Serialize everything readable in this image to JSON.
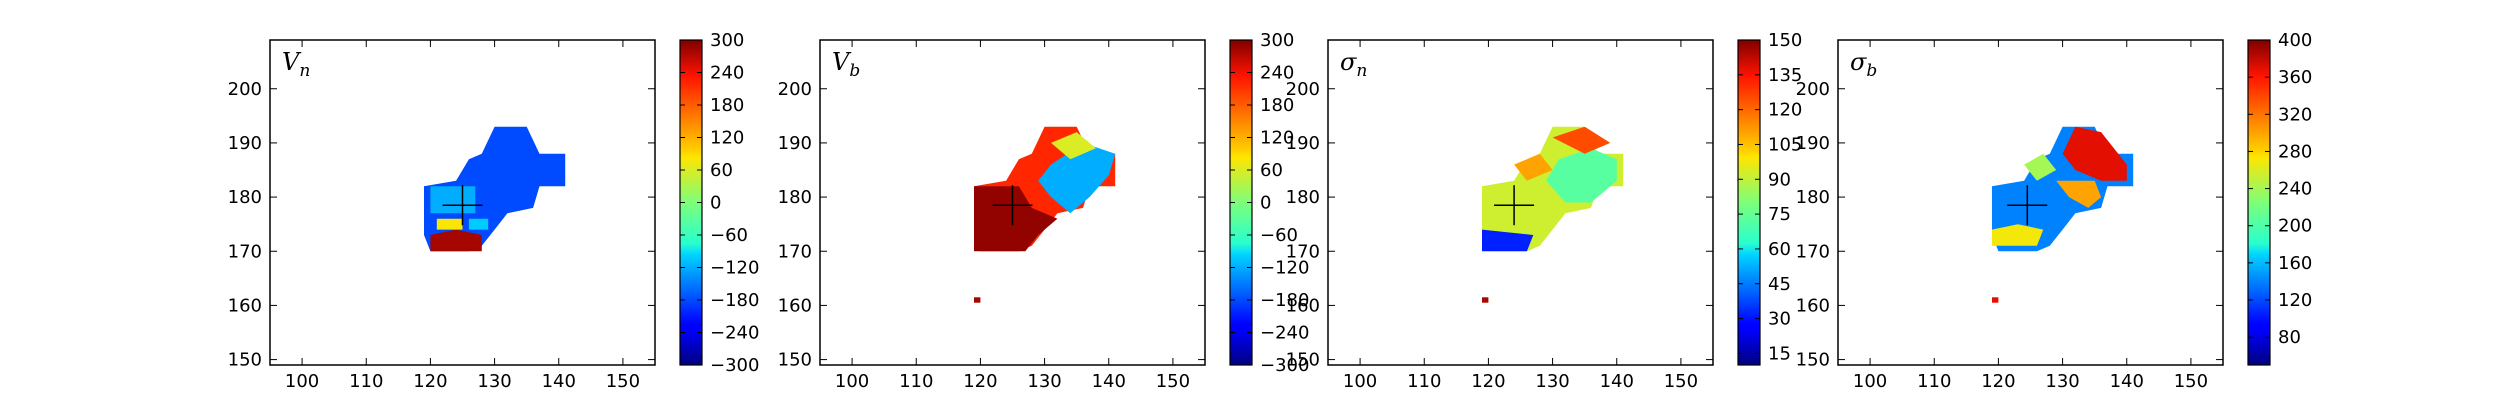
{
  "chart_data": [
    {
      "type": "heatmap",
      "title": "V_n",
      "title_base": "V",
      "title_sub": "n",
      "xlim": [
        95,
        155
      ],
      "ylim": [
        149,
        209
      ],
      "xticks": [
        100,
        110,
        120,
        130,
        140,
        150
      ],
      "yticks": [
        150,
        160,
        170,
        180,
        190,
        200
      ],
      "marker": {
        "x": 125,
        "y": 178.5
      },
      "colorbar": {
        "min": -300,
        "max": 300,
        "ticks": [
          -300,
          -240,
          -180,
          -120,
          -60,
          0,
          60,
          120,
          180,
          240,
          300
        ]
      },
      "regions": [
        {
          "poly": [
            [
              130,
              193
            ],
            [
              135,
              193
            ],
            [
              137,
              188
            ],
            [
              141,
              188
            ],
            [
              141,
              182
            ],
            [
              137,
              182
            ],
            [
              136,
              178
            ],
            [
              132,
              177
            ],
            [
              130,
              174
            ],
            [
              128,
              171
            ],
            [
              126,
              170
            ],
            [
              120,
              170
            ],
            [
              119,
              173
            ],
            [
              119,
              182
            ],
            [
              124,
              183
            ],
            [
              126,
              187
            ],
            [
              128,
              188
            ]
          ],
          "value": -180
        },
        {
          "poly": [
            [
              120,
              170
            ],
            [
              128,
              170
            ],
            [
              128,
              173
            ],
            [
              124,
              174
            ],
            [
              120,
              173
            ]
          ],
          "value": 280
        },
        {
          "poly": [
            [
              121,
              174
            ],
            [
              125,
              174
            ],
            [
              125,
              176
            ],
            [
              121,
              176
            ]
          ],
          "value": 80
        },
        {
          "poly": [
            [
              126,
              174
            ],
            [
              129,
              174
            ],
            [
              129,
              176
            ],
            [
              126,
              176
            ]
          ],
          "value": -100
        },
        {
          "poly": [
            [
              120,
              177
            ],
            [
              127,
              177
            ],
            [
              127,
              182
            ],
            [
              120,
              182
            ]
          ],
          "value": -120
        }
      ]
    },
    {
      "type": "heatmap",
      "title": "V_b",
      "title_base": "V",
      "title_sub": "b",
      "xlim": [
        95,
        155
      ],
      "ylim": [
        149,
        209
      ],
      "xticks": [
        100,
        110,
        120,
        130,
        140,
        150
      ],
      "yticks": [
        150,
        160,
        170,
        180,
        190,
        200
      ],
      "marker": {
        "x": 125,
        "y": 178.5
      },
      "colorbar": {
        "min": -300,
        "max": 300,
        "ticks": [
          -300,
          -240,
          -180,
          -120,
          -60,
          0,
          60,
          120,
          180,
          240,
          300
        ]
      },
      "regions": [
        {
          "poly": [
            [
              130,
              193
            ],
            [
              135,
              193
            ],
            [
              137,
              188
            ],
            [
              141,
              188
            ],
            [
              141,
              182
            ],
            [
              137,
              182
            ],
            [
              136,
              178
            ],
            [
              132,
              177
            ],
            [
              130,
              174
            ],
            [
              128,
              171
            ],
            [
              126,
              170
            ],
            [
              120,
              170
            ],
            [
              119,
              173
            ],
            [
              119,
              182
            ],
            [
              124,
              183
            ],
            [
              126,
              187
            ],
            [
              128,
              188
            ]
          ],
          "value": 220
        },
        {
          "poly": [
            [
              119,
              170
            ],
            [
              127,
              170
            ],
            [
              129,
              173
            ],
            [
              132,
              176
            ],
            [
              128,
              178
            ],
            [
              126,
              182
            ],
            [
              119,
              182
            ]
          ],
          "value": 290
        },
        {
          "poly": [
            [
              129,
              183
            ],
            [
              131,
              180
            ],
            [
              134,
              177
            ],
            [
              137,
              180
            ],
            [
              140,
              184
            ],
            [
              141,
              188
            ],
            [
              136,
              190
            ],
            [
              131,
              186
            ]
          ],
          "value": -120
        },
        {
          "poly": [
            [
              131,
              190
            ],
            [
              135,
              192
            ],
            [
              138,
              189
            ],
            [
              134,
              187
            ]
          ],
          "value": 60
        },
        {
          "poly": [
            [
              119,
              160.5
            ],
            [
              120,
              160.5
            ],
            [
              120,
              161.5
            ],
            [
              119,
              161.5
            ]
          ],
          "value": 280
        }
      ]
    },
    {
      "type": "heatmap",
      "title": "σ_n",
      "title_base": "σ",
      "title_sub": "n",
      "xlim": [
        95,
        155
      ],
      "ylim": [
        149,
        209
      ],
      "xticks": [
        100,
        110,
        120,
        130,
        140,
        150
      ],
      "yticks": [
        150,
        160,
        170,
        180,
        190,
        200
      ],
      "marker": {
        "x": 124,
        "y": 178.5
      },
      "colorbar": {
        "min": 10,
        "max": 150,
        "ticks": [
          15,
          30,
          45,
          60,
          75,
          90,
          105,
          120,
          135,
          150
        ]
      },
      "regions": [
        {
          "poly": [
            [
              130,
              193
            ],
            [
              135,
              193
            ],
            [
              137,
              188
            ],
            [
              141,
              188
            ],
            [
              141,
              182
            ],
            [
              137,
              182
            ],
            [
              136,
              178
            ],
            [
              132,
              177
            ],
            [
              130,
              174
            ],
            [
              128,
              171
            ],
            [
              126,
              170
            ],
            [
              120,
              170
            ],
            [
              119,
              173
            ],
            [
              119,
              182
            ],
            [
              124,
              183
            ],
            [
              126,
              187
            ],
            [
              128,
              188
            ]
          ],
          "value": 92
        },
        {
          "poly": [
            [
              129,
              183
            ],
            [
              132,
              179
            ],
            [
              136,
              179
            ],
            [
              140,
              183
            ],
            [
              140,
              187
            ],
            [
              136,
              189
            ],
            [
              131,
              187
            ]
          ],
          "value": 72
        },
        {
          "poly": [
            [
              130,
              191
            ],
            [
              135,
              193
            ],
            [
              139,
              190
            ],
            [
              135,
              188
            ]
          ],
          "value": 125
        },
        {
          "poly": [
            [
              124,
              186
            ],
            [
              128,
              188
            ],
            [
              130,
              185
            ],
            [
              126,
              183
            ]
          ],
          "value": 110
        },
        {
          "poly": [
            [
              119,
              170
            ],
            [
              126,
              170
            ],
            [
              127,
              173
            ],
            [
              119,
              174
            ]
          ],
          "value": 32
        },
        {
          "poly": [
            [
              119,
              160.5
            ],
            [
              120,
              160.5
            ],
            [
              120,
              161.5
            ],
            [
              119,
              161.5
            ]
          ],
          "value": 145
        }
      ]
    },
    {
      "type": "heatmap",
      "title": "σ_b",
      "title_base": "σ",
      "title_sub": "b",
      "xlim": [
        95,
        155
      ],
      "ylim": [
        149,
        209
      ],
      "xticks": [
        100,
        110,
        120,
        130,
        140,
        150
      ],
      "yticks": [
        150,
        160,
        170,
        180,
        190,
        200
      ],
      "marker": {
        "x": 124.5,
        "y": 178.5
      },
      "colorbar": {
        "min": 50,
        "max": 400,
        "ticks": [
          80,
          120,
          160,
          200,
          240,
          280,
          320,
          360,
          400
        ]
      },
      "regions": [
        {
          "poly": [
            [
              130,
              193
            ],
            [
              135,
              193
            ],
            [
              137,
              188
            ],
            [
              141,
              188
            ],
            [
              141,
              182
            ],
            [
              137,
              182
            ],
            [
              136,
              178
            ],
            [
              132,
              177
            ],
            [
              130,
              174
            ],
            [
              128,
              171
            ],
            [
              126,
              170
            ],
            [
              120,
              170
            ],
            [
              119,
              173
            ],
            [
              119,
              182
            ],
            [
              124,
              183
            ],
            [
              126,
              187
            ],
            [
              128,
              188
            ]
          ],
          "value": 140
        },
        {
          "poly": [
            [
              119,
              171
            ],
            [
              126,
              171
            ],
            [
              127,
              174
            ],
            [
              123,
              175
            ],
            [
              119,
              174
            ]
          ],
          "value": 270
        },
        {
          "poly": [
            [
              130,
              188
            ],
            [
              132,
              185
            ],
            [
              136,
              183
            ],
            [
              140,
              183
            ],
            [
              140,
              186
            ],
            [
              136,
              192
            ],
            [
              132,
              193
            ]
          ],
          "value": 370
        },
        {
          "poly": [
            [
              129,
              183
            ],
            [
              131,
              180
            ],
            [
              134,
              178
            ],
            [
              136,
              180
            ],
            [
              135,
              183
            ]
          ],
          "value": 300
        },
        {
          "poly": [
            [
              124,
              186
            ],
            [
              127,
              188
            ],
            [
              129,
              185
            ],
            [
              126,
              183
            ]
          ],
          "value": 240
        },
        {
          "poly": [
            [
              119,
              160.5
            ],
            [
              120,
              160.5
            ],
            [
              120,
              161.5
            ],
            [
              119,
              161.5
            ]
          ],
          "value": 370
        }
      ]
    }
  ]
}
